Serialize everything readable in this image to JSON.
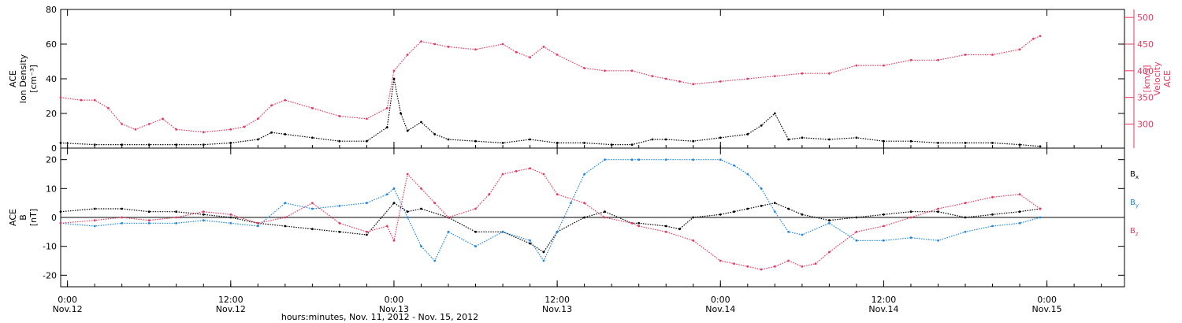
{
  "colors": {
    "black": "#000000",
    "pink": "#e8385f",
    "blue": "#1f86e6",
    "frame": "#000000"
  },
  "x_axis": {
    "title": "hours:minutes, Nov. 11, 2012 - Nov. 15, 2012",
    "ticks": [
      {
        "h": 0,
        "time": "0:00",
        "date": "Nov.12"
      },
      {
        "h": 12,
        "time": "12:00",
        "date": "Nov.12"
      },
      {
        "h": 24,
        "time": "0:00",
        "date": "Nov.13"
      },
      {
        "h": 36,
        "time": "12:00",
        "date": "Nov.13"
      },
      {
        "h": 48,
        "time": "0:00",
        "date": "Nov.14"
      },
      {
        "h": 60,
        "time": "12:00",
        "date": "Nov.14"
      },
      {
        "h": 72,
        "time": "0:00",
        "date": "Nov.15"
      }
    ]
  },
  "chart_data": [
    {
      "type": "scatter",
      "xlim_hours": [
        -0.5,
        77.7
      ],
      "left_axis": {
        "label_lines": [
          "ACE",
          "Ion Density",
          "[cm⁻³]"
        ],
        "ylim": [
          0,
          80
        ],
        "ticks": [
          0,
          20,
          40,
          60,
          80
        ]
      },
      "right_axis": {
        "label_lines": [
          "ACE",
          "Velocity",
          "[km/s]"
        ],
        "ylim": [
          255,
          515
        ],
        "ticks": [
          300,
          350,
          400,
          450,
          500
        ]
      },
      "series": [
        {
          "axis": "left",
          "color": "black",
          "x": [
            -0.5,
            2,
            4,
            6,
            8,
            10,
            12,
            14,
            15,
            16,
            18,
            20,
            22,
            23.5,
            24,
            24.5,
            25,
            26,
            27,
            28,
            30,
            32,
            34,
            36,
            38,
            40,
            41.5,
            43,
            44,
            46,
            48,
            50,
            51,
            52,
            53,
            54,
            56,
            58,
            60,
            62,
            64,
            66,
            68,
            70,
            71.5
          ],
          "y": [
            3,
            2,
            2,
            2,
            2,
            2,
            3,
            5,
            9,
            8,
            6,
            4,
            4,
            12,
            40,
            20,
            10,
            15,
            8,
            5,
            4,
            3,
            5,
            3,
            3,
            2,
            2,
            5,
            5,
            4,
            6,
            8,
            13,
            20,
            5,
            6,
            5,
            6,
            4,
            4,
            3,
            3,
            3,
            2,
            1
          ]
        },
        {
          "axis": "right",
          "color": "pink",
          "x": [
            -0.5,
            1,
            2,
            3,
            4,
            5,
            6,
            7,
            8,
            10,
            12,
            13,
            14,
            15,
            16,
            18,
            20,
            22,
            23.5,
            24,
            25,
            26,
            27,
            28,
            30,
            32,
            33,
            34,
            35,
            36,
            38,
            39.5,
            41.5,
            43,
            44,
            45,
            46,
            48,
            50,
            52,
            54,
            56,
            58,
            60,
            62,
            64,
            66,
            68,
            70,
            71,
            71.5
          ],
          "y": [
            350,
            345,
            345,
            330,
            300,
            290,
            300,
            310,
            290,
            285,
            290,
            295,
            310,
            335,
            345,
            330,
            315,
            310,
            330,
            400,
            430,
            455,
            450,
            445,
            440,
            450,
            435,
            425,
            445,
            430,
            405,
            400,
            400,
            390,
            385,
            380,
            375,
            380,
            385,
            390,
            395,
            395,
            410,
            410,
            420,
            420,
            430,
            430,
            440,
            460,
            465
          ]
        }
      ]
    },
    {
      "type": "scatter",
      "xlim_hours": [
        -0.5,
        77.7
      ],
      "left_axis": {
        "label_lines": [
          "ACE",
          "B",
          "[nT]"
        ],
        "ylim": [
          -24,
          24
        ],
        "ticks": [
          -20,
          -10,
          0,
          10,
          20
        ]
      },
      "legend": [
        {
          "label": "B",
          "sub": "x",
          "color": "black"
        },
        {
          "label": "B",
          "sub": "y",
          "color": "blue"
        },
        {
          "label": "B",
          "sub": "z",
          "color": "pink"
        }
      ],
      "series": [
        {
          "name": "Bx",
          "color": "black",
          "x": [
            -0.5,
            2,
            4,
            6,
            8,
            10,
            12,
            14,
            16,
            18,
            20,
            22,
            24,
            25,
            26,
            28,
            30,
            32,
            34,
            35,
            36,
            38,
            39.5,
            41.5,
            42,
            44,
            45,
            46,
            48,
            49,
            50,
            51,
            52,
            53,
            54,
            56,
            58,
            60,
            62,
            64,
            66,
            68,
            70,
            71.5
          ],
          "y": [
            2,
            3,
            3,
            2,
            2,
            1,
            0,
            -2,
            -3,
            -4,
            -5,
            -6,
            5,
            2,
            3,
            0,
            -5,
            -5,
            -9,
            -12,
            -5,
            0,
            2,
            -2,
            -2,
            -3,
            -4,
            0,
            1,
            2,
            3,
            4,
            5,
            3,
            1,
            -1,
            0,
            1,
            2,
            2,
            0,
            1,
            2,
            3
          ]
        },
        {
          "name": "By",
          "color": "blue",
          "x": [
            -0.5,
            2,
            4,
            6,
            8,
            10,
            12,
            14,
            16,
            18,
            20,
            22,
            23.5,
            24,
            25,
            26,
            27,
            28,
            30,
            32,
            34,
            35,
            36,
            37,
            38,
            39.5,
            41.5,
            42,
            44,
            46,
            48,
            49,
            50,
            51,
            52,
            53,
            54,
            56,
            58,
            60,
            62,
            64,
            66,
            68,
            70,
            71.5
          ],
          "y": [
            -2,
            -3,
            -2,
            -2,
            -2,
            -1,
            -2,
            -3,
            5,
            3,
            4,
            5,
            8,
            10,
            0,
            -10,
            -15,
            -5,
            -10,
            -5,
            -8,
            -15,
            -5,
            5,
            15,
            20,
            20,
            20,
            20,
            20,
            20,
            18,
            15,
            10,
            2,
            -5,
            -6,
            -2,
            -8,
            -8,
            -7,
            -8,
            -5,
            -3,
            -2,
            0
          ]
        },
        {
          "name": "Bz",
          "color": "pink",
          "x": [
            -0.5,
            2,
            4,
            6,
            8,
            10,
            12,
            14,
            16,
            18,
            20,
            22,
            23.5,
            24,
            25,
            26,
            27,
            28,
            30,
            31,
            32,
            33,
            34,
            35,
            36,
            38,
            39.5,
            41.5,
            42,
            44,
            46,
            48,
            49,
            50,
            51,
            52,
            53,
            54,
            55,
            56,
            58,
            60,
            62,
            64,
            66,
            68,
            70,
            71.5
          ],
          "y": [
            -2,
            -1,
            0,
            -1,
            0,
            2,
            1,
            -2,
            0,
            5,
            -2,
            -5,
            -3,
            -8,
            15,
            10,
            5,
            0,
            3,
            8,
            15,
            16,
            17,
            15,
            8,
            5,
            0,
            -2,
            -3,
            -5,
            -8,
            -15,
            -16,
            -17,
            -18,
            -17,
            -15,
            -17,
            -16,
            -12,
            -5,
            -3,
            0,
            3,
            5,
            7,
            8,
            3
          ]
        }
      ]
    }
  ]
}
